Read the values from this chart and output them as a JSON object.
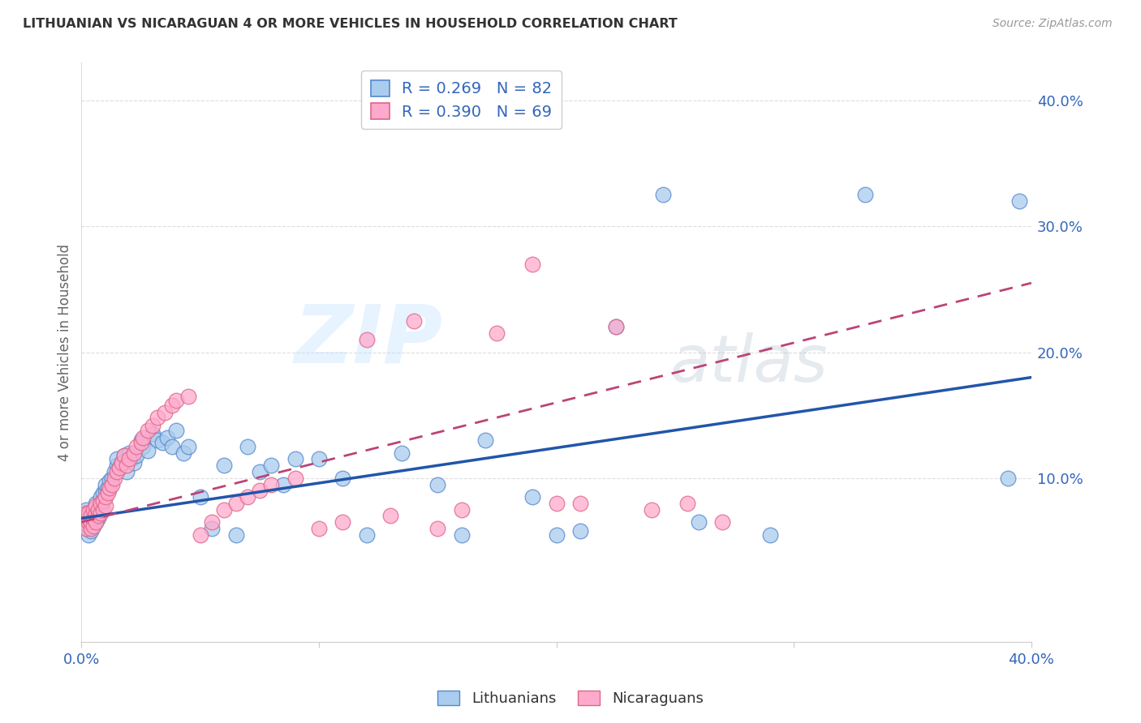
{
  "title": "LITHUANIAN VS NICARAGUAN 4 OR MORE VEHICLES IN HOUSEHOLD CORRELATION CHART",
  "source": "Source: ZipAtlas.com",
  "ylabel": "4 or more Vehicles in Household",
  "legend_blue": "R = 0.269   N = 82",
  "legend_pink": "R = 0.390   N = 69",
  "legend_blue_label": "Lithuanians",
  "legend_pink_label": "Nicaraguans",
  "blue_color": "#AACCEE",
  "pink_color": "#FFAACC",
  "blue_edge_color": "#5588CC",
  "pink_edge_color": "#DD6688",
  "blue_line_color": "#2255AA",
  "pink_line_color": "#BB4477",
  "background_color": "#FFFFFF",
  "grid_color": "#DDDDDD",
  "xlim": [
    0.0,
    0.4
  ],
  "ylim": [
    -0.03,
    0.43
  ],
  "blue_line_start_y": 0.068,
  "blue_line_end_y": 0.18,
  "pink_line_start_y": 0.065,
  "pink_line_end_y": 0.255,
  "blue_x": [
    0.001,
    0.001,
    0.002,
    0.002,
    0.002,
    0.002,
    0.003,
    0.003,
    0.003,
    0.003,
    0.004,
    0.004,
    0.004,
    0.004,
    0.005,
    0.005,
    0.005,
    0.006,
    0.006,
    0.006,
    0.006,
    0.007,
    0.007,
    0.007,
    0.008,
    0.008,
    0.008,
    0.009,
    0.009,
    0.01,
    0.01,
    0.011,
    0.012,
    0.013,
    0.014,
    0.015,
    0.015,
    0.016,
    0.017,
    0.018,
    0.019,
    0.02,
    0.021,
    0.022,
    0.023,
    0.025,
    0.026,
    0.028,
    0.03,
    0.032,
    0.034,
    0.036,
    0.038,
    0.04,
    0.043,
    0.045,
    0.05,
    0.055,
    0.06,
    0.065,
    0.07,
    0.075,
    0.08,
    0.085,
    0.09,
    0.1,
    0.11,
    0.12,
    0.135,
    0.15,
    0.16,
    0.17,
    0.19,
    0.2,
    0.21,
    0.225,
    0.245,
    0.26,
    0.29,
    0.33,
    0.39,
    0.395
  ],
  "blue_y": [
    0.065,
    0.068,
    0.07,
    0.072,
    0.075,
    0.06,
    0.064,
    0.067,
    0.07,
    0.055,
    0.06,
    0.065,
    0.07,
    0.058,
    0.062,
    0.068,
    0.072,
    0.065,
    0.07,
    0.075,
    0.08,
    0.068,
    0.072,
    0.078,
    0.075,
    0.08,
    0.085,
    0.082,
    0.088,
    0.09,
    0.095,
    0.092,
    0.098,
    0.1,
    0.105,
    0.11,
    0.115,
    0.108,
    0.112,
    0.118,
    0.105,
    0.12,
    0.115,
    0.112,
    0.118,
    0.13,
    0.125,
    0.122,
    0.135,
    0.13,
    0.128,
    0.132,
    0.125,
    0.138,
    0.12,
    0.125,
    0.085,
    0.06,
    0.11,
    0.055,
    0.125,
    0.105,
    0.11,
    0.095,
    0.115,
    0.115,
    0.1,
    0.055,
    0.12,
    0.095,
    0.055,
    0.13,
    0.085,
    0.055,
    0.058,
    0.22,
    0.325,
    0.065,
    0.055,
    0.325,
    0.1,
    0.32
  ],
  "pink_x": [
    0.001,
    0.001,
    0.002,
    0.002,
    0.002,
    0.003,
    0.003,
    0.003,
    0.004,
    0.004,
    0.004,
    0.005,
    0.005,
    0.005,
    0.006,
    0.006,
    0.006,
    0.007,
    0.007,
    0.008,
    0.008,
    0.009,
    0.009,
    0.01,
    0.01,
    0.011,
    0.012,
    0.013,
    0.014,
    0.015,
    0.016,
    0.017,
    0.018,
    0.019,
    0.02,
    0.022,
    0.023,
    0.025,
    0.026,
    0.028,
    0.03,
    0.032,
    0.035,
    0.038,
    0.04,
    0.045,
    0.05,
    0.055,
    0.06,
    0.065,
    0.07,
    0.075,
    0.08,
    0.09,
    0.1,
    0.11,
    0.12,
    0.13,
    0.14,
    0.15,
    0.16,
    0.175,
    0.19,
    0.2,
    0.21,
    0.225,
    0.24,
    0.255,
    0.27
  ],
  "pink_y": [
    0.065,
    0.068,
    0.07,
    0.072,
    0.06,
    0.065,
    0.068,
    0.072,
    0.06,
    0.065,
    0.07,
    0.062,
    0.068,
    0.075,
    0.065,
    0.072,
    0.078,
    0.07,
    0.075,
    0.072,
    0.08,
    0.075,
    0.082,
    0.078,
    0.085,
    0.088,
    0.092,
    0.095,
    0.1,
    0.105,
    0.108,
    0.112,
    0.118,
    0.11,
    0.115,
    0.12,
    0.125,
    0.128,
    0.132,
    0.138,
    0.142,
    0.148,
    0.152,
    0.158,
    0.162,
    0.165,
    0.055,
    0.065,
    0.075,
    0.08,
    0.085,
    0.09,
    0.095,
    0.1,
    0.06,
    0.065,
    0.21,
    0.07,
    0.225,
    0.06,
    0.075,
    0.215,
    0.27,
    0.08,
    0.08,
    0.22,
    0.075,
    0.08,
    0.065
  ]
}
